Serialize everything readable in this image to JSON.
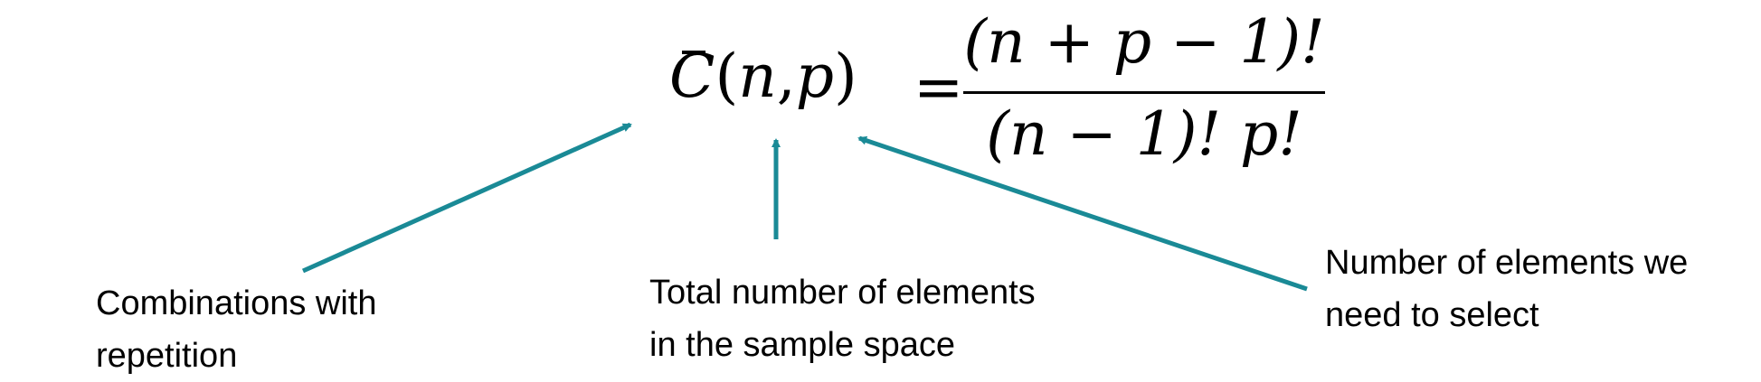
{
  "formula": {
    "lhs": {
      "symbol": "C",
      "open": "(",
      "arg1": "n",
      "comma": ",",
      "arg2": "p",
      "close": ")"
    },
    "equals": "=",
    "numerator": "(n + p − 1)!",
    "denominator": "(n − 1)! p!"
  },
  "annotations": {
    "combinations": [
      "Combinations with",
      "repetition"
    ],
    "total": [
      "Total number of elements",
      "in the sample space"
    ],
    "select": [
      "Number of elements we",
      "need to select"
    ]
  },
  "colors": {
    "arrow": "#1a8a96",
    "text": "#000000"
  }
}
